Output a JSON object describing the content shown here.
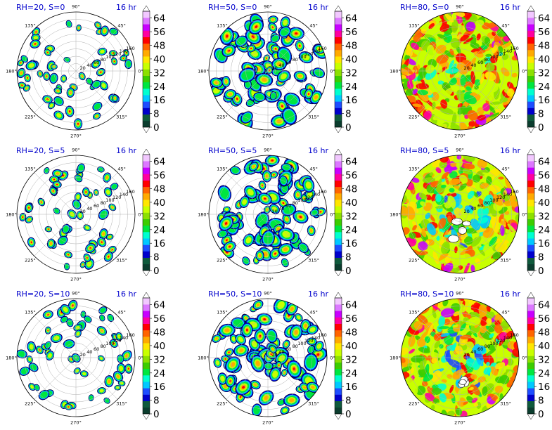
{
  "chart_data": {
    "type": "heatmap",
    "layout": {
      "rows": 3,
      "cols": 3
    },
    "time_label": "16 hr",
    "azimuth_ticks": [
      "90°",
      "45°",
      "0°",
      "315°",
      "270°",
      "225°",
      "180°",
      "135°"
    ],
    "radial_ticks": [
      "20",
      "40",
      "60",
      "80",
      "100",
      "120",
      "140",
      "160"
    ],
    "colorbar": {
      "ticks": [
        "64",
        "56",
        "48",
        "40",
        "32",
        "24",
        "16",
        "8",
        "0"
      ],
      "vmin": 0,
      "vmax": 64,
      "levels": [
        0,
        4,
        8,
        12,
        16,
        20,
        24,
        28,
        32,
        36,
        40,
        44,
        48,
        52,
        56,
        60,
        64,
        68
      ],
      "colors": [
        "#0b3d2e",
        "#0f5a3c",
        "#0000cc",
        "#1e4dff",
        "#00c8ff",
        "#00ffd0",
        "#00e640",
        "#3ccd00",
        "#8ce000",
        "#c8ff00",
        "#ffe600",
        "#ffaa00",
        "#ff6400",
        "#ff0000",
        "#ff00a0",
        "#c800ff",
        "#dc78ff",
        "#f2c8ff"
      ]
    },
    "panels": [
      {
        "title": "RH=20, S=0",
        "rh": 20,
        "s": 0
      },
      {
        "title": "RH=50, S=0",
        "rh": 50,
        "s": 0
      },
      {
        "title": "RH=80, S=0",
        "rh": 80,
        "s": 0
      },
      {
        "title": "RH=20, S=5",
        "rh": 20,
        "s": 5
      },
      {
        "title": "RH=50, S=5",
        "rh": 50,
        "s": 5
      },
      {
        "title": "RH=80, S=5",
        "rh": 80,
        "s": 5
      },
      {
        "title": "RH=20, S=10",
        "rh": 20,
        "s": 10
      },
      {
        "title": "RH=50, S=10",
        "rh": 50,
        "s": 10
      },
      {
        "title": "RH=80, S=10",
        "rh": 80,
        "s": 10
      }
    ]
  }
}
